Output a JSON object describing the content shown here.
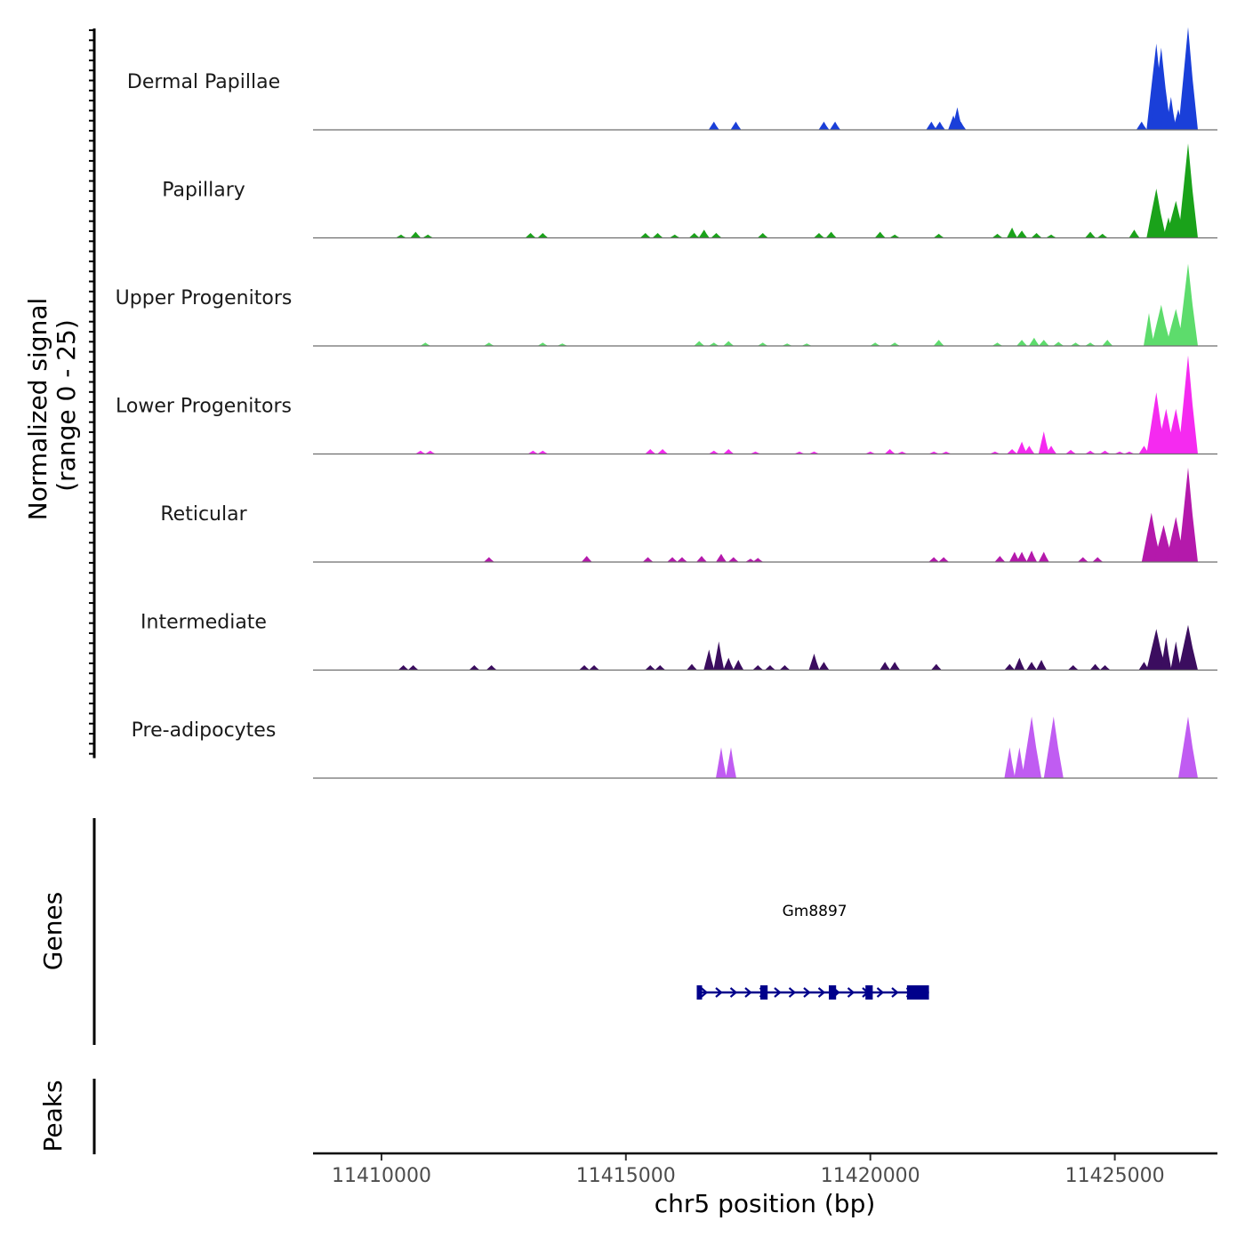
{
  "chart_data": {
    "type": "area",
    "title": "",
    "ylabel_line1": "Normalized signal",
    "ylabel_line2": "(range 0 - 25)",
    "ylim": [
      0,
      25
    ],
    "xlabel": "chr5 position (bp)",
    "chromosome": "chr5",
    "xlim": [
      11408600,
      11427100
    ],
    "x_ticks": [
      11410000,
      11415000,
      11420000,
      11425000
    ],
    "x_tick_labels": [
      "11410000",
      "11415000",
      "11420000",
      "11425000"
    ],
    "tracks": [
      {
        "name": "Dermal Papillae",
        "color": "#1a3fd9",
        "peaks": [
          [
            11416800,
            2
          ],
          [
            11417250,
            2
          ],
          [
            11419050,
            2
          ],
          [
            11419280,
            2
          ],
          [
            11421250,
            2
          ],
          [
            11421420,
            2
          ],
          [
            11421700,
            3.5
          ],
          [
            11421780,
            5.5
          ],
          [
            11421850,
            2
          ],
          [
            11425550,
            2
          ],
          [
            11425850,
            21
          ],
          [
            11425950,
            20
          ],
          [
            11426050,
            8
          ],
          [
            11426150,
            8
          ],
          [
            11426300,
            5
          ],
          [
            11426500,
            25
          ]
        ]
      },
      {
        "name": "Papillary",
        "color": "#1aa21a",
        "peaks": [
          [
            11410400,
            0.8
          ],
          [
            11410700,
            1.5
          ],
          [
            11410950,
            0.8
          ],
          [
            11413050,
            1.2
          ],
          [
            11413300,
            1.2
          ],
          [
            11415400,
            1.2
          ],
          [
            11415650,
            1.2
          ],
          [
            11416000,
            0.8
          ],
          [
            11416400,
            1.2
          ],
          [
            11416600,
            2
          ],
          [
            11416850,
            1.2
          ],
          [
            11417800,
            1.2
          ],
          [
            11418950,
            1.2
          ],
          [
            11419200,
            1.5
          ],
          [
            11420200,
            1.5
          ],
          [
            11420500,
            0.8
          ],
          [
            11421400,
            1
          ],
          [
            11422600,
            1
          ],
          [
            11422900,
            2.5
          ],
          [
            11423100,
            1.8
          ],
          [
            11423400,
            1.2
          ],
          [
            11423700,
            0.8
          ],
          [
            11424500,
            1.5
          ],
          [
            11424750,
            1
          ],
          [
            11425400,
            2
          ],
          [
            11425850,
            12
          ],
          [
            11426100,
            5
          ],
          [
            11426250,
            9
          ],
          [
            11426500,
            23
          ]
        ]
      },
      {
        "name": "Upper Progenitors",
        "color": "#5ddc6c",
        "peaks": [
          [
            11410900,
            0.8
          ],
          [
            11412200,
            0.8
          ],
          [
            11413300,
            0.8
          ],
          [
            11413700,
            0.6
          ],
          [
            11416500,
            1.2
          ],
          [
            11416800,
            0.8
          ],
          [
            11417100,
            1.2
          ],
          [
            11417800,
            0.8
          ],
          [
            11418300,
            0.6
          ],
          [
            11418700,
            0.6
          ],
          [
            11420100,
            0.8
          ],
          [
            11420500,
            0.8
          ],
          [
            11421400,
            1.5
          ],
          [
            11422600,
            0.8
          ],
          [
            11423100,
            1.5
          ],
          [
            11423350,
            2
          ],
          [
            11423550,
            1.5
          ],
          [
            11423850,
            1
          ],
          [
            11424200,
            0.8
          ],
          [
            11424500,
            0.8
          ],
          [
            11424850,
            1.5
          ],
          [
            11425700,
            8
          ],
          [
            11425950,
            10
          ],
          [
            11426250,
            9
          ],
          [
            11426500,
            20
          ]
        ]
      },
      {
        "name": "Lower Progenitors",
        "color": "#f52af0",
        "peaks": [
          [
            11410800,
            0.8
          ],
          [
            11411000,
            0.8
          ],
          [
            11413100,
            0.8
          ],
          [
            11413300,
            0.8
          ],
          [
            11415500,
            1.2
          ],
          [
            11415750,
            1.2
          ],
          [
            11416800,
            0.8
          ],
          [
            11417100,
            1.2
          ],
          [
            11417650,
            0.6
          ],
          [
            11418550,
            0.6
          ],
          [
            11418850,
            0.6
          ],
          [
            11420000,
            0.6
          ],
          [
            11420400,
            1.2
          ],
          [
            11420650,
            0.6
          ],
          [
            11421300,
            0.6
          ],
          [
            11421550,
            0.6
          ],
          [
            11422550,
            0.6
          ],
          [
            11422900,
            1.2
          ],
          [
            11423100,
            3
          ],
          [
            11423250,
            2
          ],
          [
            11423550,
            5.5
          ],
          [
            11423700,
            2
          ],
          [
            11424100,
            1
          ],
          [
            11424500,
            0.8
          ],
          [
            11424800,
            0.8
          ],
          [
            11425100,
            0.6
          ],
          [
            11425300,
            0.6
          ],
          [
            11425600,
            2
          ],
          [
            11425850,
            15
          ],
          [
            11426050,
            11
          ],
          [
            11426250,
            11
          ],
          [
            11426500,
            24
          ]
        ]
      },
      {
        "name": "Reticular",
        "color": "#b419ab",
        "peaks": [
          [
            11412200,
            1.2
          ],
          [
            11414200,
            1.5
          ],
          [
            11415450,
            1.2
          ],
          [
            11415950,
            1.2
          ],
          [
            11416150,
            1.2
          ],
          [
            11416550,
            1.5
          ],
          [
            11416950,
            2
          ],
          [
            11417200,
            1.2
          ],
          [
            11417550,
            0.8
          ],
          [
            11417700,
            1
          ],
          [
            11421300,
            1.2
          ],
          [
            11421500,
            1.2
          ],
          [
            11422650,
            1.5
          ],
          [
            11422950,
            2.5
          ],
          [
            11423100,
            2.5
          ],
          [
            11423300,
            2.8
          ],
          [
            11423550,
            2.5
          ],
          [
            11424350,
            1.2
          ],
          [
            11424650,
            1.2
          ],
          [
            11425750,
            12
          ],
          [
            11426000,
            9
          ],
          [
            11426250,
            11
          ],
          [
            11426500,
            23
          ]
        ]
      },
      {
        "name": "Intermediate",
        "color": "#3b0d5f",
        "peaks": [
          [
            11410450,
            1.2
          ],
          [
            11410650,
            1.2
          ],
          [
            11411900,
            1.2
          ],
          [
            11412250,
            1.2
          ],
          [
            11414150,
            1.2
          ],
          [
            11414350,
            1.2
          ],
          [
            11415500,
            1.2
          ],
          [
            11415700,
            1.2
          ],
          [
            11416350,
            1.5
          ],
          [
            11416700,
            5
          ],
          [
            11416900,
            7
          ],
          [
            11417100,
            3
          ],
          [
            11417300,
            2.5
          ],
          [
            11417700,
            1.2
          ],
          [
            11417950,
            1.2
          ],
          [
            11418250,
            1.2
          ],
          [
            11418850,
            4
          ],
          [
            11419050,
            2
          ],
          [
            11420300,
            2
          ],
          [
            11420500,
            2
          ],
          [
            11421350,
            1.5
          ],
          [
            11422850,
            1.5
          ],
          [
            11423050,
            3
          ],
          [
            11423300,
            2
          ],
          [
            11423500,
            2.5
          ],
          [
            11424150,
            1.2
          ],
          [
            11424600,
            1.5
          ],
          [
            11424800,
            1.2
          ],
          [
            11425600,
            2
          ],
          [
            11425850,
            10
          ],
          [
            11426050,
            8
          ],
          [
            11426250,
            7
          ],
          [
            11426500,
            11
          ]
        ]
      },
      {
        "name": "Pre-adipocytes",
        "color": "#c05cf2",
        "peaks": [
          [
            11416950,
            7.5
          ],
          [
            11417150,
            7.5
          ],
          [
            11422850,
            7.5
          ],
          [
            11423050,
            7.5
          ],
          [
            11423300,
            15
          ],
          [
            11423750,
            15
          ],
          [
            11426500,
            15
          ]
        ]
      }
    ],
    "genes": [
      {
        "name": "Gm8897",
        "strand": "+",
        "start": 11416450,
        "end": 11421200,
        "exons": [
          [
            11416450,
            11416550
          ],
          [
            11417750,
            11417900
          ],
          [
            11419150,
            11419300
          ],
          [
            11419900,
            11420050
          ],
          [
            11420750,
            11421200
          ]
        ]
      }
    ],
    "peaks_track_label": "Peaks",
    "genes_track_label": "Genes"
  }
}
